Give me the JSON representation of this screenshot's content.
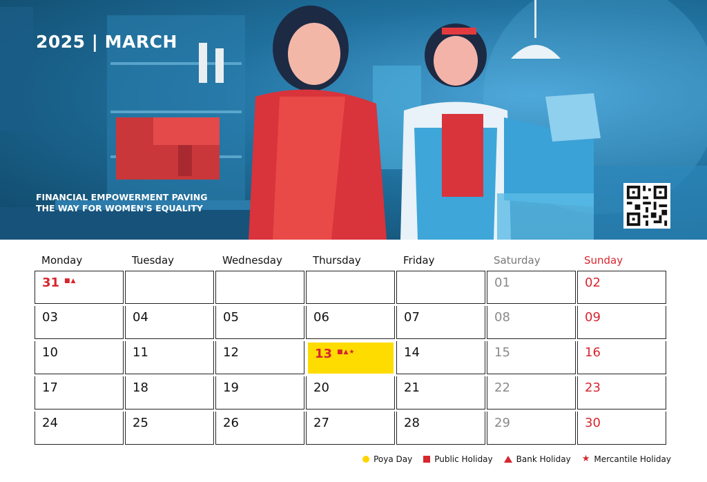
{
  "header": {
    "title": "2025 | MARCH",
    "tagline_line1": "FINANCIAL EMPOWERMENT PAVING",
    "tagline_line2": "THE WAY FOR WOMEN'S EQUALITY"
  },
  "colors": {
    "holiday_red": "#d7262e",
    "poya_yellow": "#ffdc00",
    "saturday_gray": "#8a8a8a"
  },
  "days": [
    "Monday",
    "Tuesday",
    "Wednesday",
    "Thursday",
    "Friday",
    "Saturday",
    "Sunday"
  ],
  "weeks": [
    [
      {
        "n": "31",
        "marks": "■▲",
        "type": "hol"
      },
      {
        "n": ""
      },
      {
        "n": ""
      },
      {
        "n": ""
      },
      {
        "n": ""
      },
      {
        "n": "01"
      },
      {
        "n": "02"
      }
    ],
    [
      {
        "n": "03"
      },
      {
        "n": "04"
      },
      {
        "n": "05"
      },
      {
        "n": "06"
      },
      {
        "n": "07"
      },
      {
        "n": "08"
      },
      {
        "n": "09"
      }
    ],
    [
      {
        "n": "10"
      },
      {
        "n": "11"
      },
      {
        "n": "12"
      },
      {
        "n": "13",
        "marks": "■▲★",
        "type": "poya"
      },
      {
        "n": "14"
      },
      {
        "n": "15"
      },
      {
        "n": "16"
      }
    ],
    [
      {
        "n": "17"
      },
      {
        "n": "18"
      },
      {
        "n": "19"
      },
      {
        "n": "20"
      },
      {
        "n": "21"
      },
      {
        "n": "22"
      },
      {
        "n": "23"
      }
    ],
    [
      {
        "n": "24"
      },
      {
        "n": "25"
      },
      {
        "n": "26"
      },
      {
        "n": "27"
      },
      {
        "n": "28"
      },
      {
        "n": "29"
      },
      {
        "n": "30"
      }
    ]
  ],
  "legend": {
    "poya": "Poya Day",
    "public": "Public Holiday",
    "bank": "Bank Holiday",
    "mercantile": "Mercantile Holiday"
  }
}
